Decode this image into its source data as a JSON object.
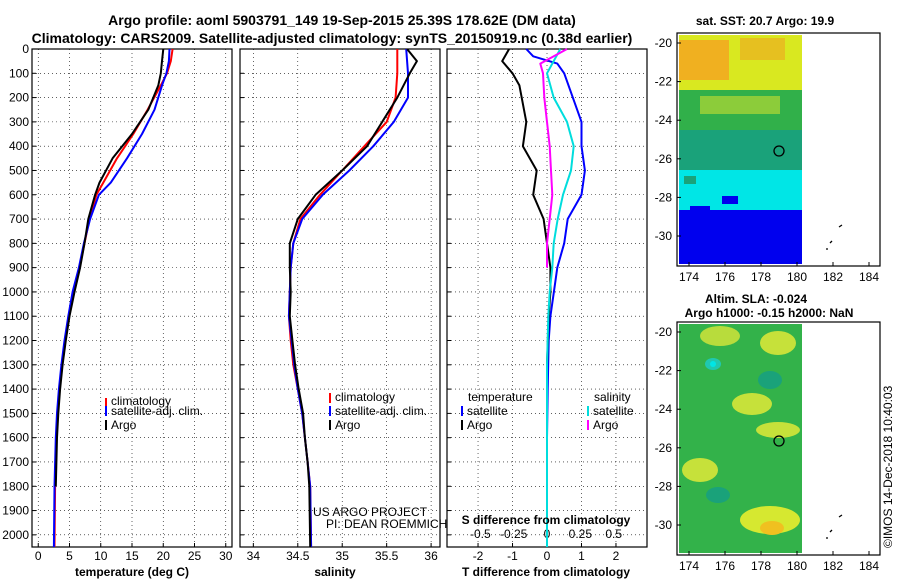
{
  "header": {
    "title_line1": "Argo profile: aoml 5903791_149 19-Sep-2015 25.39S 178.62E (DM data)",
    "title_line2": "Climatology: CARS2009. Satellite-adjusted climatology: synTS_20150919.nc (0.38d earlier)"
  },
  "colors": {
    "climatology": "#ff0000",
    "satellite": "#0000ff",
    "argo": "#000000",
    "sal_satellite": "#00dddd",
    "sal_argo": "#ff00ff"
  },
  "legends": {
    "temp": [
      "climatology",
      "satellite-adj. clim.",
      "Argo"
    ],
    "sal": [
      "climatology",
      "satellite-adj. clim.",
      "Argo"
    ],
    "diff_temp_head": "temperature",
    "diff_temp": [
      "satellite",
      "Argo"
    ],
    "diff_sal_head": "salinity",
    "diff_sal": [
      "satellite",
      "Argo"
    ]
  },
  "credit": {
    "line1": "US ARGO PROJECT",
    "line2": "PI: DEAN ROEMMICH"
  },
  "maps": {
    "sst_title": "sat. SST: 20.7 Argo: 19.9",
    "sla_title1": "Altim. SLA: -0.024",
    "sla_title2": "Argo h1000: -0.15 h2000: NaN",
    "y_ticks": [
      "-20",
      "-22",
      "-24",
      "-26",
      "-28",
      "-30"
    ],
    "x_ticks": [
      "174",
      "176",
      "178",
      "180",
      "182",
      "184"
    ],
    "marker": {
      "lon": 178.62,
      "lat": -25.39
    }
  },
  "imos": "©IMOS 14-Dec-2018 10:40:03",
  "chart_data": [
    {
      "type": "line",
      "xlabel": "temperature (deg C)",
      "ylabel": "",
      "x_ticks": [
        "0",
        "5",
        "10",
        "15",
        "20",
        "25",
        "30"
      ],
      "y_ticks": [
        "0",
        "100",
        "200",
        "300",
        "400",
        "500",
        "600",
        "700",
        "800",
        "900",
        "1000",
        "1100",
        "1200",
        "1300",
        "1400",
        "1500",
        "1600",
        "1700",
        "1800",
        "1900",
        "2000"
      ],
      "xlim": [
        -1,
        31
      ],
      "ylim": [
        2050,
        0
      ],
      "series": [
        {
          "name": "climatology",
          "x": [
            21.5,
            21.2,
            20.6,
            19.6,
            17.5,
            15.2,
            12.6,
            10.4,
            9.3,
            8.2,
            7.4,
            6.6,
            5.6,
            4.9,
            4.3,
            3.8,
            3.4,
            3.1,
            2.9,
            2.7,
            2.6
          ],
          "y": [
            0,
            50,
            100,
            150,
            250,
            350,
            450,
            550,
            600,
            700,
            800,
            900,
            1000,
            1100,
            1200,
            1300,
            1400,
            1500,
            1600,
            1800,
            2050
          ]
        },
        {
          "name": "satellite-adj. clim.",
          "x": [
            21.0,
            20.9,
            20.5,
            19.8,
            18.6,
            16.6,
            14.2,
            11.6,
            9.7,
            8.3,
            7.3,
            6.5,
            5.5,
            4.8,
            4.2,
            3.7,
            3.3,
            3.0,
            2.8,
            2.6,
            2.5
          ],
          "y": [
            0,
            50,
            100,
            150,
            250,
            350,
            450,
            550,
            600,
            700,
            800,
            900,
            1000,
            1100,
            1200,
            1300,
            1400,
            1500,
            1600,
            1800,
            2050
          ]
        },
        {
          "name": "Argo",
          "x": [
            20.0,
            19.8,
            19.6,
            19.2,
            17.6,
            15.0,
            11.9,
            9.8,
            9.1,
            8.0,
            7.4,
            6.7,
            5.8,
            5.0,
            4.4,
            3.9,
            3.5,
            3.2,
            3.0,
            2.8
          ],
          "y": [
            0,
            50,
            100,
            150,
            250,
            350,
            450,
            550,
            600,
            700,
            800,
            900,
            1000,
            1100,
            1200,
            1300,
            1400,
            1500,
            1600,
            1800
          ]
        }
      ]
    },
    {
      "type": "line",
      "xlabel": "salinity",
      "ylabel": "",
      "x_ticks": [
        "34",
        "34.5",
        "35",
        "35.5",
        "36"
      ],
      "xlim": [
        33.85,
        36.1
      ],
      "ylim": [
        2050,
        0
      ],
      "series": [
        {
          "name": "climatology",
          "x": [
            35.62,
            35.62,
            35.6,
            35.5,
            35.25,
            35.0,
            34.75,
            34.53,
            34.45,
            34.42,
            34.41,
            34.4,
            34.42,
            34.45,
            34.5,
            34.55,
            34.58,
            34.61,
            34.64,
            34.65
          ],
          "y": [
            0,
            100,
            200,
            300,
            400,
            500,
            600,
            700,
            800,
            900,
            1000,
            1100,
            1200,
            1300,
            1400,
            1500,
            1600,
            1700,
            1800,
            2050
          ]
        },
        {
          "name": "satellite-adj. clim.",
          "x": [
            35.72,
            35.74,
            35.74,
            35.58,
            35.35,
            35.08,
            34.78,
            34.55,
            34.45,
            34.42,
            34.41,
            34.4,
            34.43,
            34.46,
            34.5,
            34.55,
            34.58,
            34.61,
            34.64,
            34.65
          ],
          "y": [
            0,
            100,
            200,
            300,
            400,
            500,
            600,
            700,
            800,
            900,
            1000,
            1100,
            1200,
            1300,
            1400,
            1500,
            1600,
            1700,
            1800,
            2050
          ]
        },
        {
          "name": "Argo",
          "x": [
            35.73,
            35.84,
            35.76,
            35.62,
            35.28,
            35.0,
            34.7,
            34.5,
            34.41,
            34.41,
            34.42,
            34.41,
            34.44,
            34.47,
            34.51,
            34.56,
            34.58,
            34.61,
            34.63,
            34.64
          ],
          "y": [
            0,
            50,
            100,
            200,
            400,
            500,
            600,
            700,
            800,
            900,
            1000,
            1100,
            1200,
            1300,
            1400,
            1500,
            1600,
            1700,
            1800,
            2050
          ]
        }
      ]
    },
    {
      "type": "line",
      "xlabel": "T difference from climatology",
      "x_ticks": [
        "-2",
        "-1",
        "0",
        "1",
        "2"
      ],
      "xlim": [
        -2.9,
        2.9
      ],
      "ylim": [
        2050,
        0
      ],
      "secondary_axis": {
        "label": "S difference from climatology",
        "ticks": [
          "-0.5",
          "-0.25",
          "0",
          "0.25",
          "0.5"
        ],
        "xlim": [
          -0.75,
          0.75
        ]
      },
      "series": [
        {
          "name": "temperature satellite",
          "x": [
            -0.6,
            -0.4,
            0.3,
            0.5,
            1.0,
            1.0,
            1.1,
            1.0,
            0.6,
            0.5,
            0.3,
            0.2,
            0.1,
            0.05,
            0.02,
            0.0,
            0.0
          ],
          "y": [
            0,
            30,
            60,
            100,
            300,
            400,
            500,
            600,
            700,
            800,
            900,
            1000,
            1100,
            1200,
            1400,
            1600,
            2050
          ]
        },
        {
          "name": "temperature Argo",
          "x": [
            -1.1,
            -1.3,
            -1.0,
            -0.8,
            -0.6,
            -0.7,
            -0.3,
            -0.4,
            -0.1,
            0.0,
            0.1,
            0.1,
            0.05,
            0.0,
            0.0
          ],
          "y": [
            0,
            50,
            100,
            150,
            300,
            400,
            500,
            600,
            700,
            800,
            900,
            1000,
            1100,
            1300,
            1400
          ]
        },
        {
          "name": "salinity satellite",
          "x": [
            0.1,
            0.0,
            0.05,
            0.15,
            0.2,
            0.18,
            0.12,
            0.08,
            0.05,
            0.04,
            0.02,
            0.01,
            0.0,
            0.0,
            0.0
          ],
          "y": [
            0,
            100,
            200,
            300,
            400,
            500,
            600,
            700,
            800,
            900,
            1000,
            1100,
            1300,
            1600,
            2050
          ]
        },
        {
          "name": "salinity Argo",
          "x": [
            0.15,
            -0.05,
            -0.03,
            -0.02,
            0.0,
            0.02,
            0.03,
            0.04,
            0.02,
            0.0,
            0.0
          ],
          "y": [
            0,
            60,
            100,
            200,
            300,
            400,
            500,
            600,
            700,
            800,
            900
          ]
        }
      ]
    }
  ]
}
